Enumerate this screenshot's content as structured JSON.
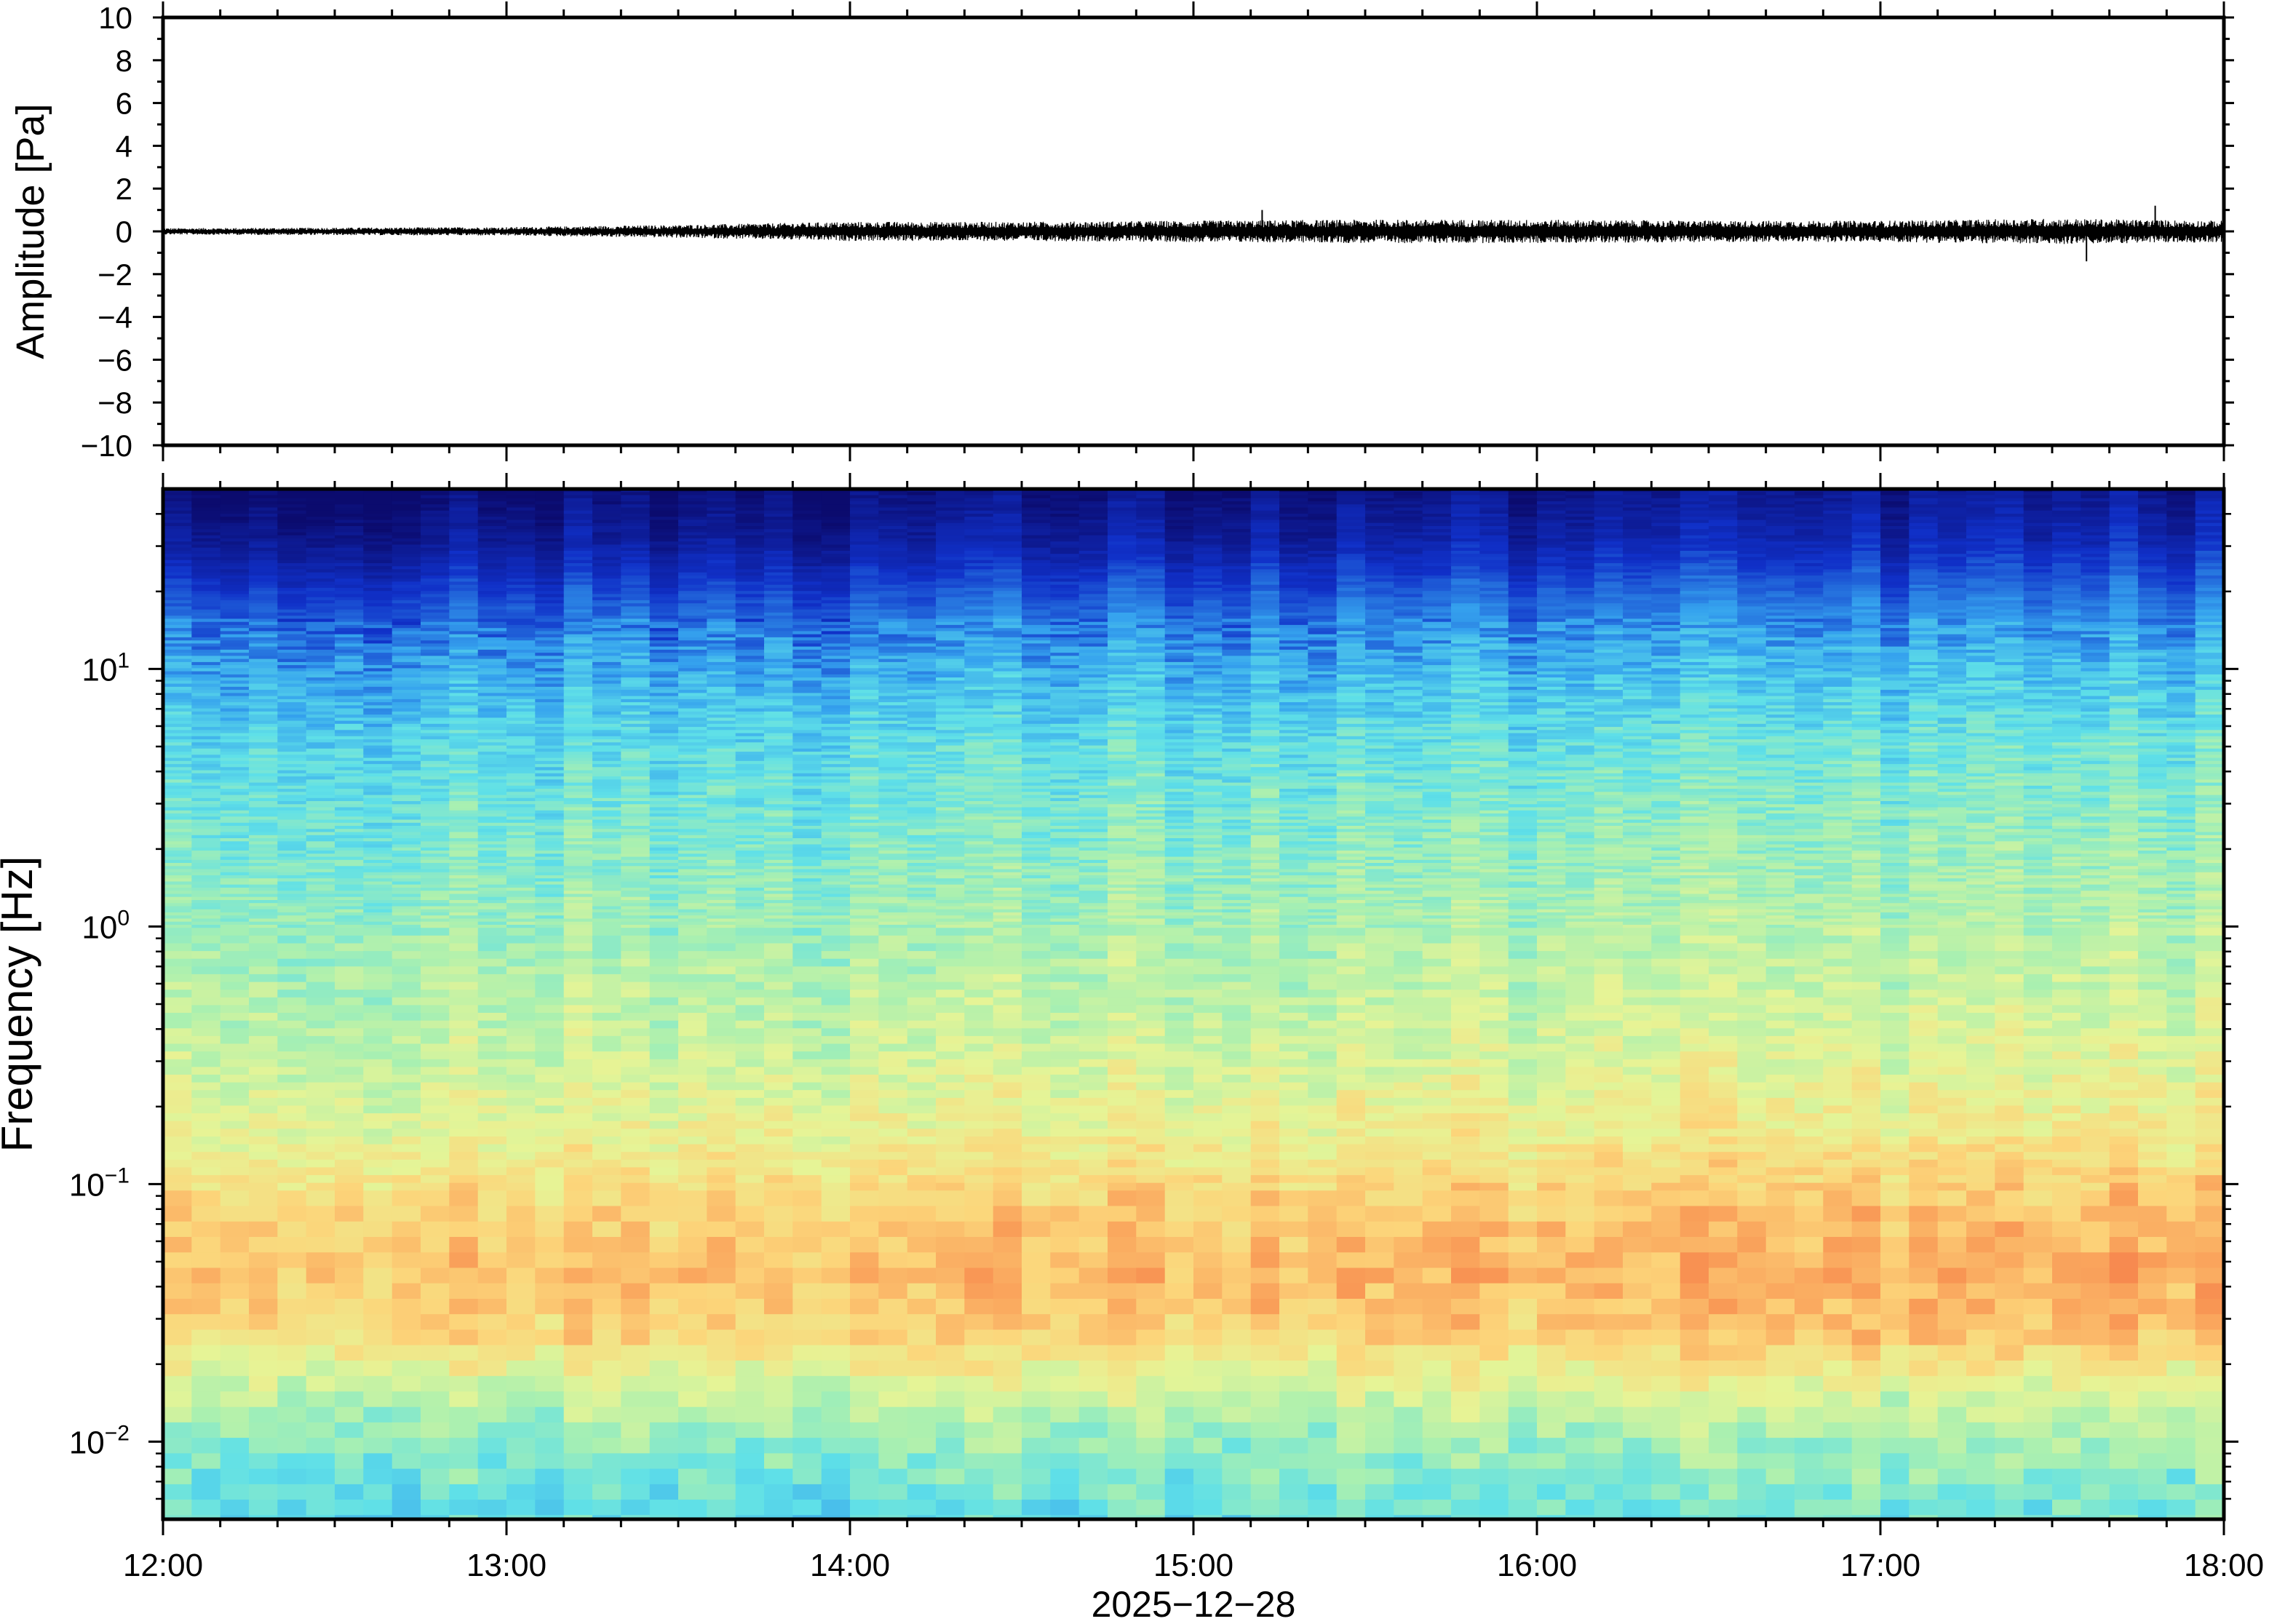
{
  "chart_data": [
    {
      "type": "line",
      "name": "waveform",
      "xlim": [
        "12:00",
        "18:00"
      ],
      "ylim": [
        -10,
        10
      ],
      "ylabel": "Amplitude [Pa]",
      "y_ticks": [
        "10",
        "8",
        "6",
        "4",
        "2",
        "0",
        "−2",
        "−4",
        "−6",
        "−8",
        "−10"
      ],
      "y_tick_values": [
        10,
        8,
        6,
        4,
        2,
        0,
        -2,
        -4,
        -6,
        -8,
        -10
      ],
      "amplitude_envelope": {
        "times": [
          "12:00",
          "13:00",
          "13:30",
          "14:00",
          "14:30",
          "15:00",
          "15:30",
          "16:00",
          "16:30",
          "17:00",
          "17:30",
          "18:00"
        ],
        "values": [
          0.15,
          0.2,
          0.3,
          0.45,
          0.45,
          0.5,
          0.55,
          0.55,
          0.5,
          0.5,
          0.6,
          0.5
        ]
      },
      "peak_events": [
        {
          "time": "15:12",
          "value": 1.0
        },
        {
          "time": "17:48",
          "value": 1.2
        },
        {
          "time": "17:36",
          "value": -1.4
        }
      ],
      "grid": false
    },
    {
      "type": "heatmap",
      "name": "spectrogram",
      "xlim": [
        "12:00",
        "18:00"
      ],
      "ylim": [
        0.005,
        50
      ],
      "yscale": "log",
      "ylabel": "Frequency [Hz]",
      "y_ticks": [
        {
          "value": 10,
          "base": "10",
          "exp": "1"
        },
        {
          "value": 1,
          "base": "10",
          "exp": "0"
        },
        {
          "value": 0.1,
          "base": "10",
          "exp": "−1"
        },
        {
          "value": 0.01,
          "base": "10",
          "exp": "−2"
        }
      ],
      "colormap": [
        "#0b0b6e",
        "#1030c8",
        "#35a2ee",
        "#5fe0e8",
        "#aaf0b0",
        "#e6f496",
        "#fcd57a",
        "#f99a56",
        "#f26a42"
      ],
      "profile": {
        "log_freq": [
          1.7,
          1.5,
          1.3,
          1.0,
          0.7,
          0.3,
          0.0,
          -0.5,
          -0.8,
          -1.1,
          -1.35,
          -1.6,
          -1.8,
          -2.0,
          -2.3
        ],
        "level": [
          0.0,
          0.05,
          0.14,
          0.26,
          0.36,
          0.43,
          0.48,
          0.56,
          0.63,
          0.74,
          0.78,
          0.72,
          0.56,
          0.45,
          0.36
        ]
      },
      "grid": false
    }
  ],
  "x_axis": {
    "ticks": [
      "12:00",
      "13:00",
      "14:00",
      "15:00",
      "16:00",
      "17:00",
      "18:00"
    ],
    "date_label": "2025−12−28"
  }
}
